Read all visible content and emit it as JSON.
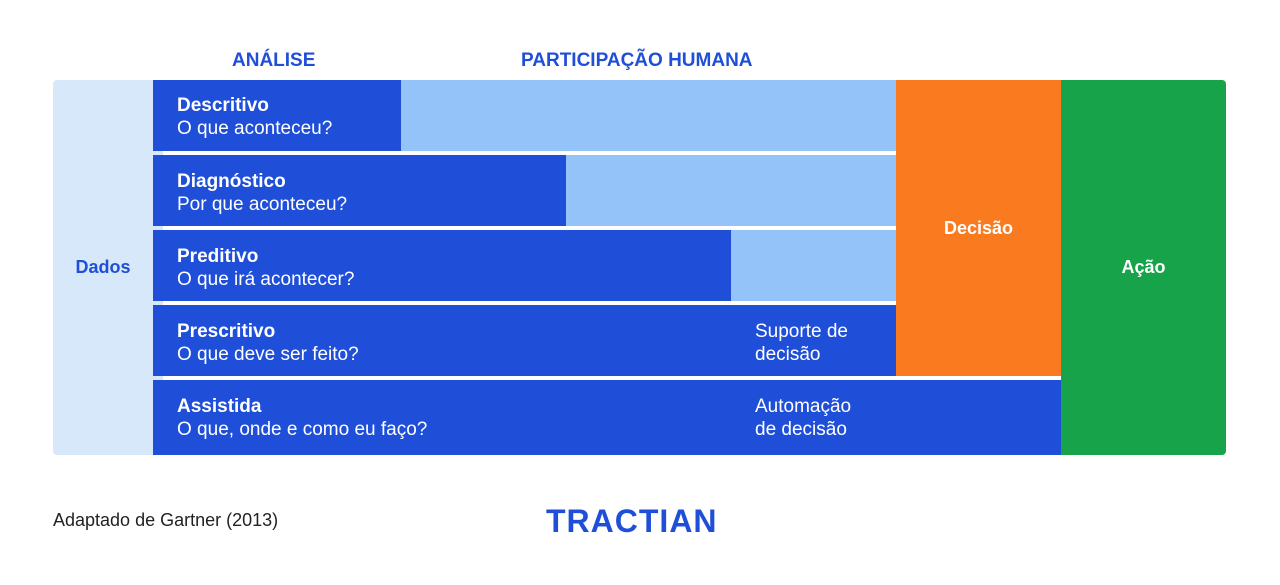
{
  "headers": {
    "analise": "ANÁLISE",
    "participacao": "PARTICIPAÇÃO HUMANA"
  },
  "dados_label": "Dados",
  "levels": [
    {
      "title": "Descritivo",
      "subtitle": "O que aconteceu?"
    },
    {
      "title": "Diagnóstico",
      "subtitle": "Por que aconteceu?"
    },
    {
      "title": "Preditivo",
      "subtitle": "O que irá acontecer?"
    },
    {
      "title": "Prescritivo",
      "subtitle": "O que deve ser feito?"
    },
    {
      "title": "Assistida",
      "subtitle": "O que, onde e como eu faço?"
    }
  ],
  "side_labels": {
    "suporte_line1": "Suporte de",
    "suporte_line2": "decisão",
    "automacao_line1": "Automação",
    "automacao_line2": "de decisão"
  },
  "decisao_label": "Decisão",
  "acao_label": "Ação",
  "source": "Adaptado de Gartner (2013)",
  "logo": "TRACTIAN",
  "colors": {
    "dark_blue": "#1f4fd8",
    "light_blue": "#93c3f8",
    "pale_blue": "#d8e8fb",
    "orange": "#f97a1f",
    "green": "#17a34a"
  }
}
